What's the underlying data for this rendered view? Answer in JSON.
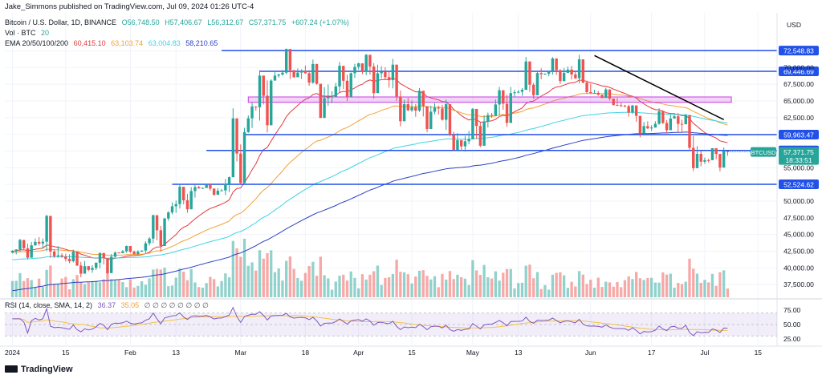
{
  "header": {
    "published": "Jake_Simmons published on TradingView.com, Jul 09, 2024 01:26 UTC-4",
    "symbol": "Bitcoin / U.S. Dollar, 1D, BINANCE",
    "open": "O56,748.50",
    "high": "H57,406.67",
    "low": "L56,312.67",
    "close": "C57,371.75",
    "change": "+607.24 (+1.07%)",
    "vol_label": "Vol · BTC",
    "vol_value": "20",
    "ema_label": "EMA 20/50/100/200",
    "ema20": "60,415.10",
    "ema50": "63,103.74",
    "ema100": "63,004.83",
    "ema200": "58,210.65",
    "rsi_label": "RSI (14, close, SMA, 14, 2)",
    "rsi_value": "36.37",
    "rsi_ma": "35.05",
    "rsi_na": "∅ ∅ ∅ ∅ ∅ ∅ ∅ ∅"
  },
  "currency": "USD",
  "footer": "TradingView",
  "chart_data": {
    "type": "candlestick",
    "symbol": "BTCUSD",
    "interval": "1D",
    "price_ticks": [
      72500,
      70000,
      67500,
      65000,
      62500,
      60000,
      57500,
      55000,
      52500,
      50000,
      47500,
      45000,
      42500,
      40000,
      37500
    ],
    "price_tick_labels": [
      "",
      "70,000.00",
      "67,500.00",
      "65,000.00",
      "62,500.00",
      "",
      "",
      "55,000.00",
      "",
      "50,000.00",
      "47,500.00",
      "45,000.00",
      "42,500.00",
      "40,000.00",
      "37,500.00"
    ],
    "ylim": [
      35600,
      74600
    ],
    "x_ticks": [
      "2024",
      "15",
      "Feb",
      "13",
      "Mar",
      "18",
      "Apr",
      "15",
      "May",
      "13",
      "Jun",
      "17",
      "Jul",
      "15"
    ],
    "x_tick_days": [
      1,
      15,
      32,
      44,
      61,
      78,
      92,
      106,
      122,
      134,
      153,
      169,
      183,
      197
    ],
    "day_range": [
      -1,
      202
    ],
    "candles_weekly": [
      {
        "o": 42300,
        "h": 44500,
        "l": 40800,
        "c": 43900
      },
      {
        "o": 43900,
        "h": 48900,
        "l": 41500,
        "c": 41700
      },
      {
        "o": 41700,
        "h": 42800,
        "l": 38600,
        "c": 39700
      },
      {
        "o": 39700,
        "h": 42600,
        "l": 38500,
        "c": 42300
      },
      {
        "o": 42300,
        "h": 43500,
        "l": 41900,
        "c": 42600
      },
      {
        "o": 42600,
        "h": 48500,
        "l": 42200,
        "c": 48300
      },
      {
        "o": 48300,
        "h": 52600,
        "l": 48000,
        "c": 52100
      },
      {
        "o": 52100,
        "h": 52600,
        "l": 50600,
        "c": 51600
      },
      {
        "o": 51600,
        "h": 63900,
        "l": 50900,
        "c": 62400
      },
      {
        "o": 62400,
        "h": 69600,
        "l": 59000,
        "c": 68800
      },
      {
        "o": 68800,
        "h": 73700,
        "l": 68300,
        "c": 69500
      },
      {
        "o": 69500,
        "h": 71200,
        "l": 60800,
        "c": 65600
      },
      {
        "o": 65600,
        "h": 71000,
        "l": 64500,
        "c": 70100
      },
      {
        "o": 70100,
        "h": 72500,
        "l": 64600,
        "c": 69400
      },
      {
        "o": 69400,
        "h": 71300,
        "l": 60700,
        "c": 63600
      },
      {
        "o": 63600,
        "h": 67100,
        "l": 59600,
        "c": 64000
      },
      {
        "o": 64000,
        "h": 65200,
        "l": 56500,
        "c": 58200
      },
      {
        "o": 58200,
        "h": 64800,
        "l": 56900,
        "c": 62900
      },
      {
        "o": 62900,
        "h": 67100,
        "l": 60200,
        "c": 66300
      },
      {
        "o": 66300,
        "h": 71900,
        "l": 65100,
        "c": 69000
      },
      {
        "o": 69000,
        "h": 71800,
        "l": 67400,
        "c": 69700
      },
      {
        "o": 69700,
        "h": 71900,
        "l": 66100,
        "c": 66200
      },
      {
        "o": 66200,
        "h": 67000,
        "l": 64100,
        "c": 64300
      },
      {
        "o": 64300,
        "h": 64500,
        "l": 59200,
        "c": 60900
      },
      {
        "o": 60900,
        "h": 63900,
        "l": 60000,
        "c": 62700
      },
      {
        "o": 62700,
        "h": 63200,
        "l": 53500,
        "c": 55900
      },
      {
        "o": 55900,
        "h": 58300,
        "l": 54300,
        "c": 57371.75
      }
    ],
    "horizontal_levels": [
      {
        "price": 72548.83,
        "label": "72,548.83",
        "from_day": 56
      },
      {
        "price": 69446.69,
        "label": "69,446.69",
        "from_day": 66
      },
      {
        "price": 59963.47,
        "label": "59,963.47",
        "from_day": 62
      },
      {
        "price": 57593.75,
        "label": "57,593.75",
        "from_day": 52
      },
      {
        "price": 52524.62,
        "label": "52,524.62",
        "from_day": 43
      }
    ],
    "zone": {
      "from_price": 64800,
      "to_price": 65600,
      "from_day": 63,
      "to_day": 190
    },
    "trendline": {
      "from_day": 154,
      "from_price": 71800,
      "to_day": 188,
      "to_price": 62200
    },
    "last_price": {
      "label": "BTCUSD",
      "value": "57,371.75",
      "countdown": "18:33:51"
    },
    "rsi": {
      "ticks": [
        75,
        50,
        25
      ],
      "band": [
        30,
        70
      ],
      "last": 36.37
    },
    "series": [
      {
        "name": "EMA 20",
        "color": "#e5383b"
      },
      {
        "name": "EMA 50",
        "color": "#f5a033"
      },
      {
        "name": "EMA 100",
        "color": "#3ed3e4"
      },
      {
        "name": "EMA 200",
        "color": "#2b3fc4"
      }
    ],
    "colors": {
      "up": "#26a69a",
      "down": "#ef5350",
      "level": "#2151e9",
      "zone": "#c93ee0"
    }
  }
}
